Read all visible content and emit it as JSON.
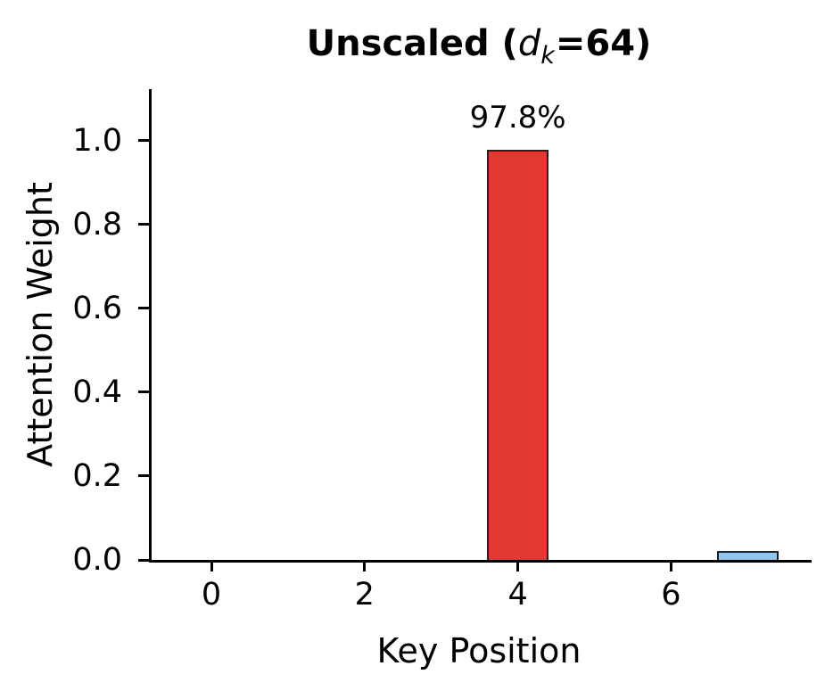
{
  "chart_data": {
    "type": "bar",
    "title": "Unscaled (d_k=64)",
    "title_parts": {
      "prefix": "Unscaled (",
      "math_var": "d",
      "math_sub": "k",
      "suffix": "=64)"
    },
    "xlabel": "Key Position",
    "ylabel": "Attention Weight",
    "x": [
      0,
      1,
      2,
      3,
      4,
      5,
      6,
      7
    ],
    "values": [
      0,
      0,
      0,
      0,
      0.978,
      0,
      0,
      0.022
    ],
    "bar_width_units": 0.8,
    "bar_colors": [
      "#8ec5ee",
      "#8ec5ee",
      "#8ec5ee",
      "#8ec5ee",
      "#e23a33",
      "#8ec5ee",
      "#8ec5ee",
      "#8ec5ee"
    ],
    "bar_edge_color": "#222222",
    "highlight_color": "#e23a33",
    "base_color": "#8ec5ee",
    "axis_color": "#000000",
    "x_ticks": [
      0,
      2,
      4,
      6
    ],
    "x_tick_labels": [
      "0",
      "2",
      "4",
      "6"
    ],
    "y_ticks": [
      0.0,
      0.2,
      0.4,
      0.6,
      0.8,
      1.0
    ],
    "y_tick_labels": [
      "0.0",
      "0.2",
      "0.4",
      "0.6",
      "0.8",
      "1.0"
    ],
    "xlim": [
      -0.78,
      7.8
    ],
    "ylim": [
      0,
      1.123
    ],
    "grid": false,
    "legend": null,
    "annotations": [
      {
        "x": 4,
        "label": "97.8%"
      }
    ]
  }
}
